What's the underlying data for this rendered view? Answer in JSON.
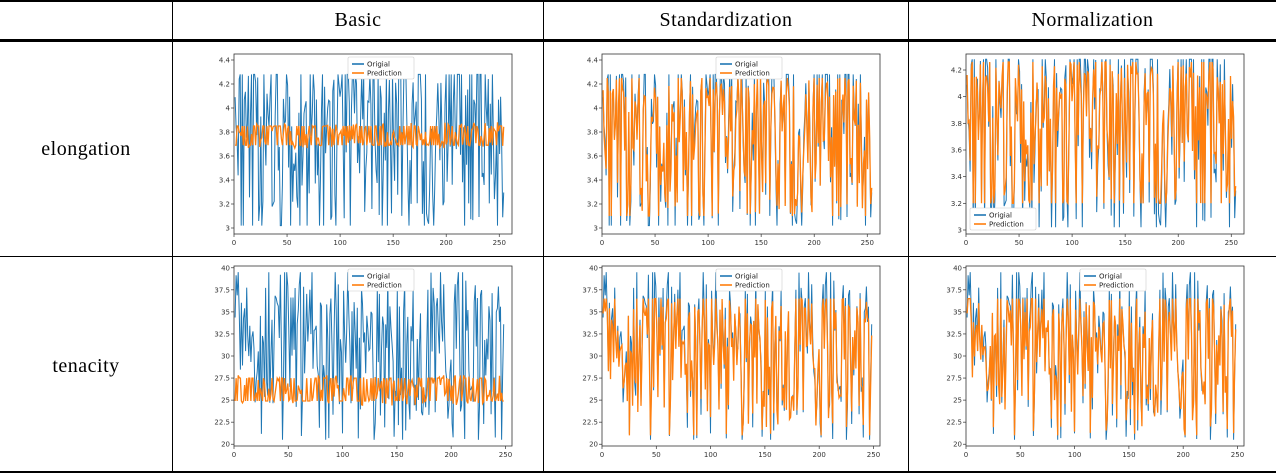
{
  "table": {
    "col_headers": [
      "Basic",
      "Standardization",
      "Normalization"
    ],
    "row_labels": [
      "elongation",
      "tenacity"
    ]
  },
  "colors": {
    "original": "#1f77b4",
    "prediction": "#ff7f0e"
  },
  "chart_data": [
    {
      "type": "line",
      "row": "elongation",
      "column": "Basic",
      "series_names": [
        "Origial",
        "Prediction"
      ],
      "legend": "top-center",
      "xlim": [
        0,
        262
      ],
      "ylim": [
        2.95,
        4.45
      ],
      "xticks": [
        0,
        50,
        100,
        150,
        200,
        250
      ],
      "yticks": [
        3.0,
        3.2,
        3.4,
        3.6,
        3.8,
        4.0,
        4.2,
        4.4
      ],
      "n_points": 262,
      "original": {
        "min": 3.02,
        "max": 4.28,
        "mean": 3.78,
        "spread": 0.42
      },
      "prediction": {
        "min": 3.62,
        "max": 3.92,
        "mean": 3.77,
        "spread": 0.08
      },
      "tracks_original": false
    },
    {
      "type": "line",
      "row": "elongation",
      "column": "Standardization",
      "series_names": [
        "Origial",
        "Prediction"
      ],
      "legend": "top-center",
      "xlim": [
        0,
        262
      ],
      "ylim": [
        2.95,
        4.45
      ],
      "xticks": [
        0,
        50,
        100,
        150,
        200,
        250
      ],
      "yticks": [
        3.0,
        3.2,
        3.4,
        3.6,
        3.8,
        4.0,
        4.2,
        4.4
      ],
      "n_points": 262,
      "original": {
        "min": 3.02,
        "max": 4.28,
        "mean": 3.78,
        "spread": 0.42
      },
      "prediction": {
        "min": 3.1,
        "max": 4.25,
        "mean": 3.76,
        "spread": 0.38
      },
      "tracks_original": true
    },
    {
      "type": "line",
      "row": "elongation",
      "column": "Normalization",
      "series_names": [
        "Origial",
        "Prediction"
      ],
      "legend": "bottom-left",
      "xlim": [
        0,
        262
      ],
      "ylim": [
        2.97,
        4.32
      ],
      "xticks": [
        0,
        50,
        100,
        150,
        200,
        250
      ],
      "yticks": [
        3.0,
        3.2,
        3.4,
        3.6,
        3.8,
        4.0,
        4.2
      ],
      "n_points": 262,
      "original": {
        "min": 3.02,
        "max": 4.28,
        "mean": 3.78,
        "spread": 0.42
      },
      "prediction": {
        "min": 3.2,
        "max": 4.26,
        "mean": 3.78,
        "spread": 0.36
      },
      "tracks_original": true
    },
    {
      "type": "line",
      "row": "tenacity",
      "column": "Basic",
      "series_names": [
        "Origial",
        "Prediction"
      ],
      "legend": "top-center",
      "xlim": [
        0,
        256
      ],
      "ylim": [
        19.8,
        40.2
      ],
      "xticks": [
        0,
        50,
        100,
        150,
        200,
        250
      ],
      "yticks": [
        20.0,
        22.5,
        25.0,
        27.5,
        30.0,
        32.5,
        35.0,
        37.5,
        40.0
      ],
      "n_points": 256,
      "original": {
        "min": 20.5,
        "max": 39.5,
        "mean": 30.5,
        "spread": 4.5
      },
      "prediction": {
        "min": 24.0,
        "max": 27.8,
        "mean": 26.2,
        "spread": 1.3
      },
      "tracks_original": false
    },
    {
      "type": "line",
      "row": "tenacity",
      "column": "Standardization",
      "series_names": [
        "Origial",
        "Prediction"
      ],
      "legend": "top-center",
      "xlim": [
        0,
        256
      ],
      "ylim": [
        19.8,
        40.2
      ],
      "xticks": [
        0,
        50,
        100,
        150,
        200,
        250
      ],
      "yticks": [
        20.0,
        22.5,
        25.0,
        27.5,
        30.0,
        32.5,
        35.0,
        37.5,
        40.0
      ],
      "n_points": 256,
      "original": {
        "min": 20.5,
        "max": 39.5,
        "mean": 30.5,
        "spread": 4.5
      },
      "prediction": {
        "min": 21.0,
        "max": 36.5,
        "mean": 30.2,
        "spread": 4.0
      },
      "tracks_original": true
    },
    {
      "type": "line",
      "row": "tenacity",
      "column": "Normalization",
      "series_names": [
        "Origial",
        "Prediction"
      ],
      "legend": "top-center",
      "xlim": [
        0,
        256
      ],
      "ylim": [
        19.8,
        40.2
      ],
      "xticks": [
        0,
        50,
        100,
        150,
        200,
        250
      ],
      "yticks": [
        20.0,
        22.5,
        25.0,
        27.5,
        30.0,
        32.5,
        35.0,
        37.5,
        40.0
      ],
      "n_points": 256,
      "original": {
        "min": 20.5,
        "max": 39.5,
        "mean": 30.5,
        "spread": 4.5
      },
      "prediction": {
        "min": 21.0,
        "max": 36.5,
        "mean": 30.2,
        "spread": 4.0
      },
      "tracks_original": true
    }
  ]
}
